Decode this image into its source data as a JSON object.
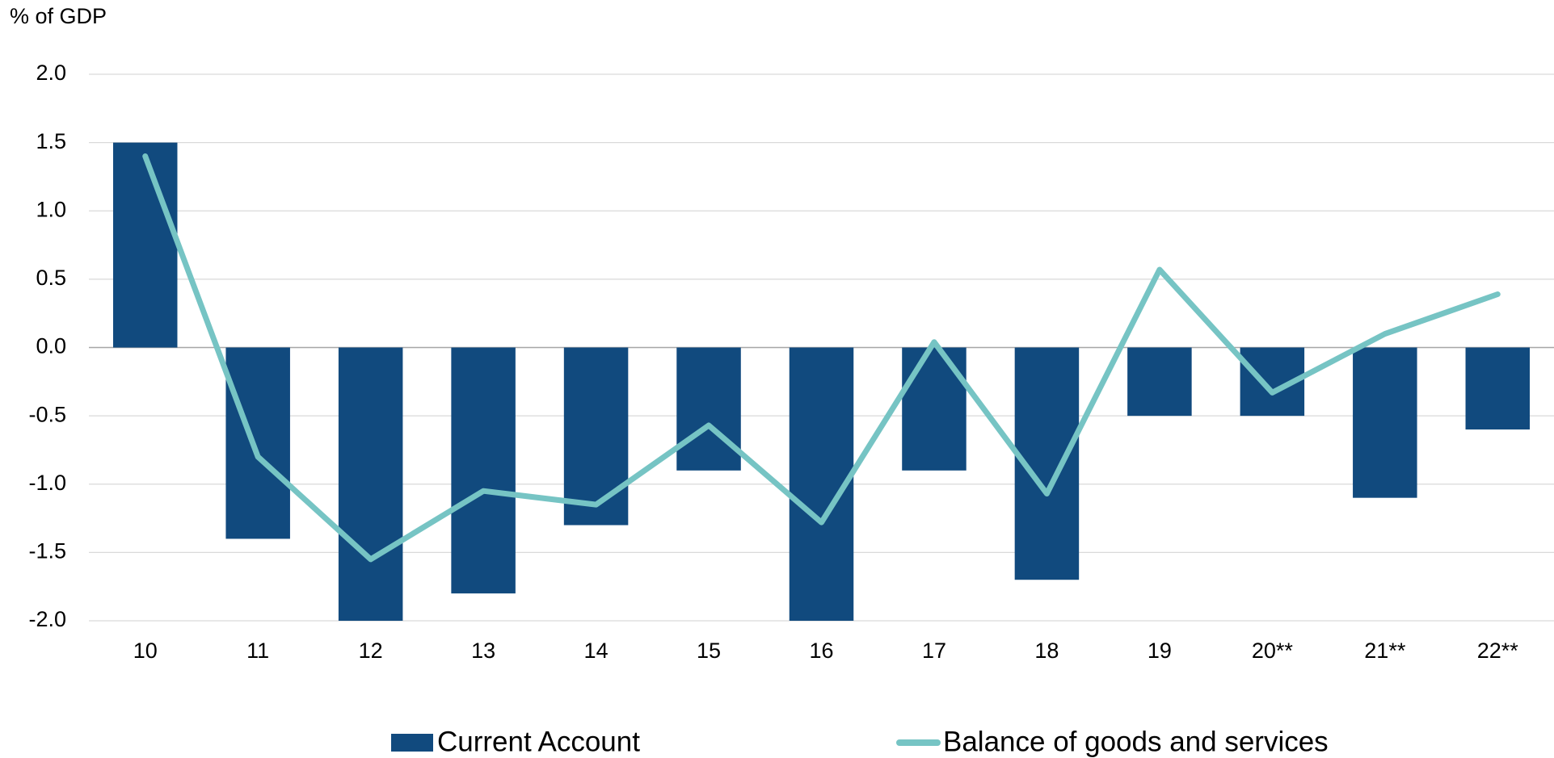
{
  "chart_data": {
    "type": "bar_line",
    "y_axis_label": "% of GDP",
    "categories": [
      "10",
      "11",
      "12",
      "13",
      "14",
      "15",
      "16",
      "17",
      "18",
      "19",
      "20**",
      "21**",
      "22**"
    ],
    "series": [
      {
        "name": "Current Account",
        "type": "bar",
        "color": "#114a7e",
        "values": [
          1.5,
          -1.4,
          -2.0,
          -1.8,
          -1.3,
          -0.9,
          -2.0,
          -0.9,
          -1.7,
          -0.5,
          -0.5,
          -1.1,
          -0.6
        ]
      },
      {
        "name": "Balance of goods and services",
        "type": "line",
        "color": "#76c4c4",
        "values": [
          1.4,
          -0.8,
          -1.55,
          -1.05,
          -1.15,
          -0.57,
          -1.28,
          0.04,
          -1.07,
          0.57,
          -0.33,
          0.1,
          0.39
        ]
      }
    ],
    "ylim": [
      -2.0,
      2.0
    ],
    "yticks": [
      {
        "value": 2,
        "label": "2.0"
      },
      1.5,
      {
        "value": 1,
        "label": "1.0"
      },
      0.5,
      {
        "value": 0,
        "label": "0.0"
      },
      -0.5,
      {
        "value": -1,
        "label": "-1.0"
      },
      -1.5,
      {
        "value": -2,
        "label": "-2.0"
      }
    ],
    "grid": true,
    "legend": "bottom"
  }
}
